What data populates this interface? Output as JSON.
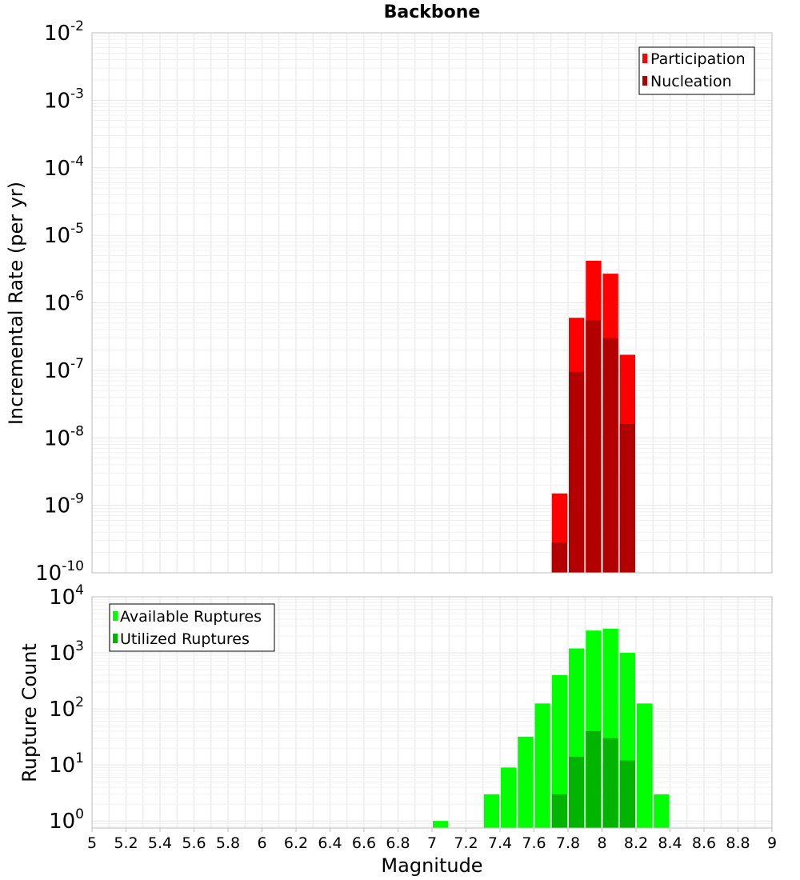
{
  "chart_data": [
    {
      "type": "bar",
      "title": "Backbone",
      "xlabel": "",
      "ylabel": "Incremental Rate (per yr)",
      "yscale": "log",
      "ylim": [
        1e-10,
        0.01
      ],
      "xlim": [
        5,
        9
      ],
      "bin_width": 0.1,
      "y_tick_exponents": [
        "-10",
        "-9",
        "-8",
        "-7",
        "-6",
        "-5",
        "-4",
        "-3",
        "-2"
      ],
      "y_tick_base": "10",
      "legend_position": "top-right",
      "series": [
        {
          "name": "Participation",
          "color": "#ff0000",
          "points": [
            [
              7.75,
              1.5e-09
            ],
            [
              7.85,
              6e-07
            ],
            [
              7.95,
              4.2e-06
            ],
            [
              8.05,
              2.7e-06
            ],
            [
              8.15,
              1.7e-07
            ]
          ]
        },
        {
          "name": "Nucleation",
          "color": "#b20000",
          "points": [
            [
              7.75,
              2.8e-10
            ],
            [
              7.85,
              9.5e-08
            ],
            [
              7.95,
              5.5e-07
            ],
            [
              8.05,
              3e-07
            ],
            [
              8.15,
              1.6e-08
            ]
          ]
        }
      ]
    },
    {
      "type": "bar",
      "title": "",
      "xlabel": "Magnitude",
      "ylabel": "Rupture Count",
      "yscale": "log",
      "ylim": [
        0.75,
        10000
      ],
      "xlim": [
        5,
        9
      ],
      "bin_width": 0.1,
      "y_tick_exponents": [
        "0",
        "1",
        "2",
        "3",
        "4"
      ],
      "y_tick_base": "10",
      "x_tick_labels": [
        "5",
        "5.2",
        "5.4",
        "5.6",
        "5.8",
        "6",
        "6.2",
        "6.4",
        "6.6",
        "6.8",
        "7",
        "7.2",
        "7.4",
        "7.6",
        "7.8",
        "8",
        "8.2",
        "8.4",
        "8.6",
        "8.8",
        "9"
      ],
      "legend_position": "top-left",
      "series": [
        {
          "name": "Available Ruptures",
          "color": "#00ff00",
          "points": [
            [
              7.05,
              1
            ],
            [
              7.35,
              3
            ],
            [
              7.45,
              9
            ],
            [
              7.55,
              32
            ],
            [
              7.65,
              125
            ],
            [
              7.75,
              400
            ],
            [
              7.85,
              1200
            ],
            [
              7.95,
              2500
            ],
            [
              8.05,
              2700
            ],
            [
              8.15,
              1000
            ],
            [
              8.25,
              125
            ],
            [
              8.35,
              3
            ]
          ]
        },
        {
          "name": "Utilized Ruptures",
          "color": "#00b400",
          "points": [
            [
              7.75,
              3
            ],
            [
              7.85,
              14
            ],
            [
              7.95,
              40
            ],
            [
              8.05,
              30
            ],
            [
              8.15,
              12
            ]
          ]
        }
      ]
    }
  ]
}
